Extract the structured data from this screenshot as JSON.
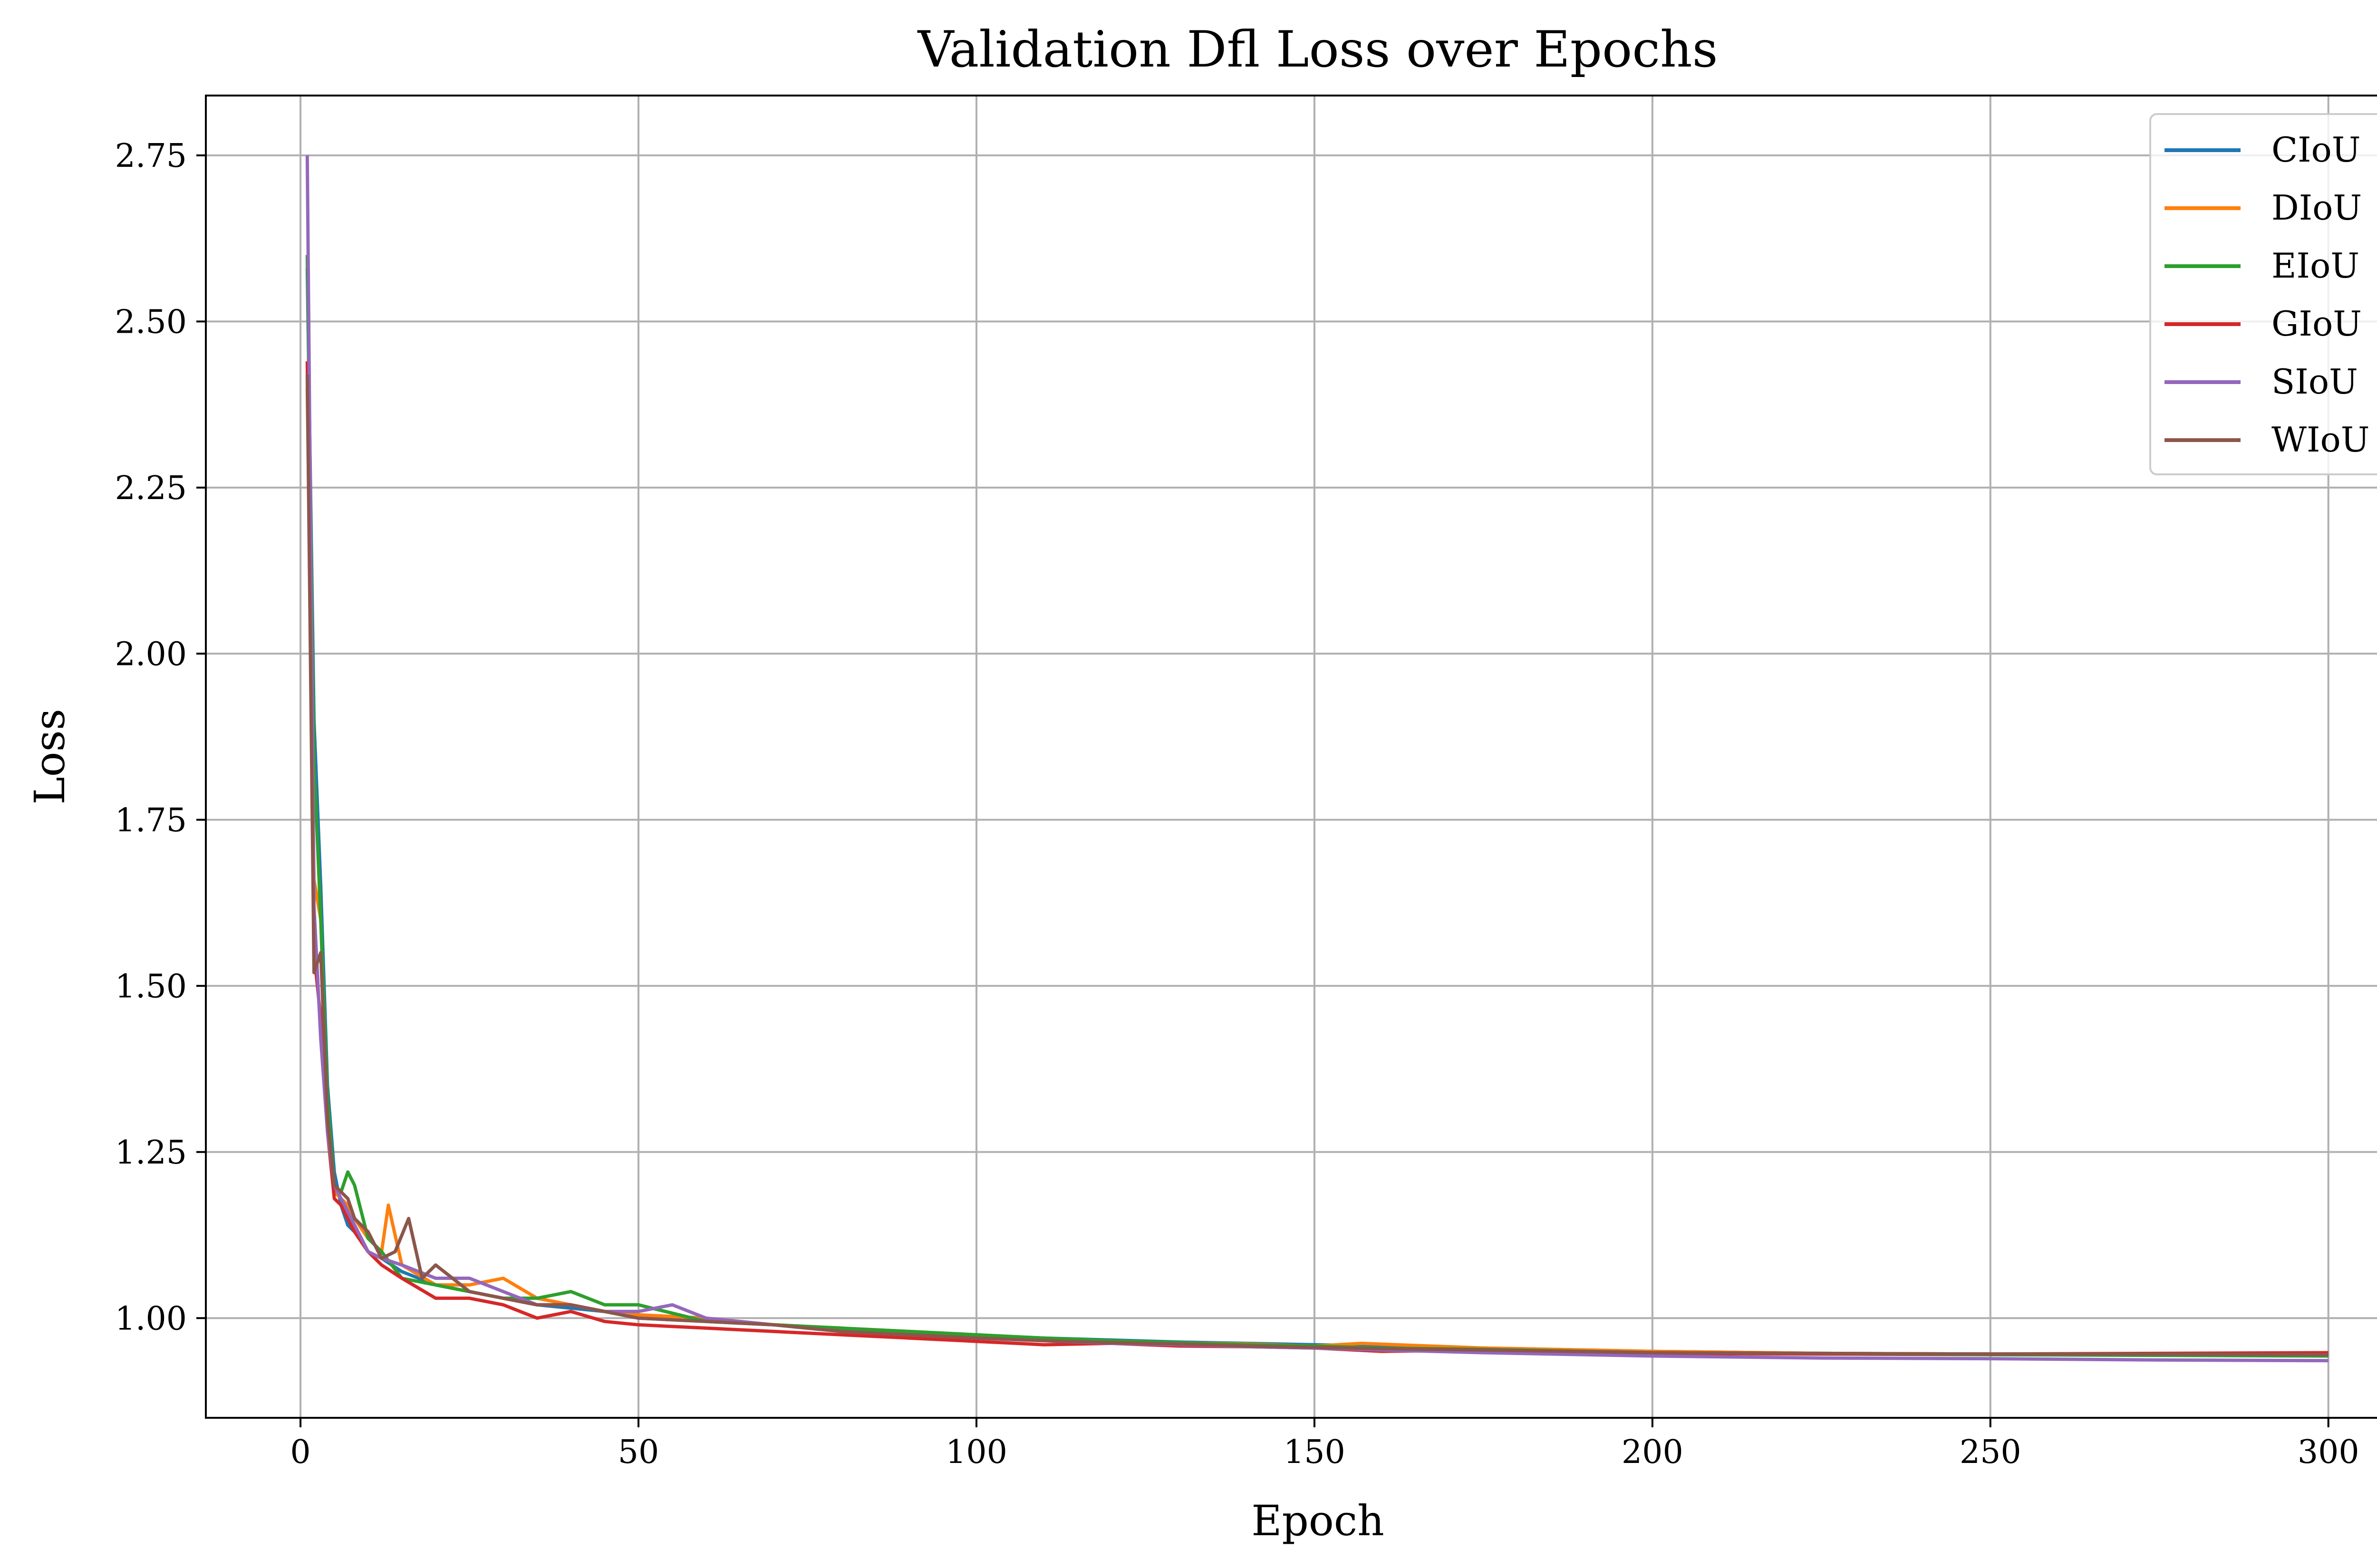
{
  "chart_data": {
    "type": "line",
    "title": "Validation Dfl Loss over Epochs",
    "xlabel": "Epoch",
    "ylabel": "Loss",
    "xlim": [
      -14,
      315
    ],
    "ylim": [
      0.85,
      2.84
    ],
    "xticks": [
      0,
      50,
      100,
      150,
      200,
      250,
      300
    ],
    "xtick_labels": [
      "0",
      "50",
      "100",
      "150",
      "200",
      "250",
      "300"
    ],
    "yticks": [
      1.0,
      1.25,
      1.5,
      1.75,
      2.0,
      2.25,
      2.5,
      2.75
    ],
    "ytick_labels": [
      "1.00",
      "1.25",
      "1.50",
      "1.75",
      "2.00",
      "2.25",
      "2.50",
      "2.75"
    ],
    "grid": true,
    "legend_position": "top-right",
    "series": [
      {
        "name": "CIoU",
        "color": "#1f77b4",
        "x": [
          1,
          2,
          3,
          4,
          5,
          6,
          7,
          8,
          10,
          12,
          15,
          20,
          25,
          30,
          35,
          40,
          45,
          50,
          60,
          70,
          80,
          90,
          100,
          110,
          120,
          130,
          140,
          150,
          160,
          175,
          200,
          225,
          250,
          275,
          300
        ],
        "y": [
          2.58,
          1.9,
          1.65,
          1.35,
          1.22,
          1.17,
          1.14,
          1.13,
          1.1,
          1.09,
          1.07,
          1.05,
          1.04,
          1.03,
          1.02,
          1.015,
          1.01,
          1.0,
          0.995,
          0.99,
          0.98,
          0.978,
          0.973,
          0.97,
          0.967,
          0.964,
          0.962,
          0.96,
          0.958,
          0.955,
          0.95,
          0.947,
          0.946,
          0.945,
          0.945
        ]
      },
      {
        "name": "DIoU",
        "color": "#ff7f0e",
        "x": [
          1,
          2,
          3,
          4,
          5,
          6,
          7,
          8,
          10,
          12,
          13,
          15,
          20,
          25,
          30,
          35,
          40,
          45,
          50,
          60,
          70,
          80,
          90,
          100,
          110,
          120,
          130,
          140,
          150,
          157,
          175,
          200,
          225,
          250,
          275,
          300
        ],
        "y": [
          2.4,
          1.66,
          1.6,
          1.3,
          1.19,
          1.18,
          1.17,
          1.15,
          1.12,
          1.1,
          1.17,
          1.08,
          1.05,
          1.05,
          1.06,
          1.03,
          1.02,
          1.01,
          1.005,
          1.0,
          0.99,
          0.985,
          0.98,
          0.975,
          0.968,
          0.965,
          0.963,
          0.961,
          0.958,
          0.962,
          0.955,
          0.95,
          0.947,
          0.946,
          0.945,
          0.944
        ]
      },
      {
        "name": "EIoU",
        "color": "#2ca02c",
        "x": [
          1,
          2,
          3,
          4,
          5,
          6,
          7,
          8,
          10,
          12,
          15,
          20,
          25,
          30,
          35,
          40,
          45,
          50,
          60,
          70,
          80,
          90,
          100,
          110,
          120,
          130,
          140,
          150,
          160,
          175,
          200,
          225,
          250,
          275,
          300
        ],
        "y": [
          2.6,
          1.84,
          1.6,
          1.33,
          1.2,
          1.19,
          1.22,
          1.2,
          1.12,
          1.1,
          1.06,
          1.05,
          1.04,
          1.03,
          1.03,
          1.04,
          1.02,
          1.02,
          0.995,
          0.99,
          0.985,
          0.98,
          0.975,
          0.97,
          0.966,
          0.963,
          0.96,
          0.958,
          0.955,
          0.953,
          0.948,
          0.946,
          0.945,
          0.944,
          0.943
        ]
      },
      {
        "name": "GIoU",
        "color": "#d62728",
        "x": [
          1,
          2,
          3,
          4,
          5,
          6,
          7,
          8,
          10,
          12,
          15,
          20,
          25,
          30,
          35,
          40,
          45,
          50,
          60,
          70,
          80,
          90,
          100,
          110,
          120,
          130,
          140,
          150,
          160,
          175,
          200,
          225,
          250,
          275,
          300
        ],
        "y": [
          2.44,
          1.55,
          1.45,
          1.28,
          1.18,
          1.17,
          1.15,
          1.13,
          1.1,
          1.08,
          1.06,
          1.03,
          1.03,
          1.02,
          1.0,
          1.01,
          0.995,
          0.99,
          0.985,
          0.98,
          0.975,
          0.97,
          0.965,
          0.96,
          0.962,
          0.958,
          0.957,
          0.955,
          0.95,
          0.952,
          0.947,
          0.946,
          0.946,
          0.947,
          0.948
        ]
      },
      {
        "name": "SIoU",
        "color": "#9467bd",
        "x": [
          1,
          2,
          3,
          4,
          5,
          6,
          7,
          8,
          10,
          12,
          15,
          20,
          25,
          30,
          35,
          40,
          45,
          50,
          55,
          60,
          70,
          80,
          90,
          100,
          110,
          120,
          130,
          140,
          150,
          160,
          175,
          200,
          225,
          250,
          275,
          300
        ],
        "y": [
          2.75,
          1.62,
          1.42,
          1.28,
          1.2,
          1.18,
          1.16,
          1.14,
          1.1,
          1.09,
          1.08,
          1.06,
          1.06,
          1.04,
          1.02,
          1.02,
          1.01,
          1.01,
          1.02,
          1.0,
          0.99,
          0.98,
          0.975,
          0.97,
          0.966,
          0.962,
          0.96,
          0.957,
          0.955,
          0.952,
          0.948,
          0.943,
          0.94,
          0.939,
          0.937,
          0.936
        ]
      },
      {
        "name": "WIoU",
        "color": "#8c564b",
        "x": [
          1,
          2,
          3,
          4,
          5,
          6,
          7,
          8,
          10,
          12,
          14,
          16,
          18,
          20,
          25,
          30,
          35,
          40,
          45,
          50,
          60,
          70,
          80,
          90,
          100,
          110,
          120,
          130,
          140,
          150,
          160,
          175,
          200,
          225,
          250,
          275,
          300
        ],
        "y": [
          2.42,
          1.52,
          1.55,
          1.3,
          1.2,
          1.19,
          1.18,
          1.15,
          1.13,
          1.09,
          1.1,
          1.15,
          1.06,
          1.08,
          1.04,
          1.03,
          1.02,
          1.02,
          1.01,
          1.0,
          0.995,
          0.99,
          0.98,
          0.975,
          0.97,
          0.966,
          0.963,
          0.961,
          0.958,
          0.956,
          0.954,
          0.952,
          0.948,
          0.947,
          0.946,
          0.946,
          0.945
        ]
      }
    ]
  }
}
